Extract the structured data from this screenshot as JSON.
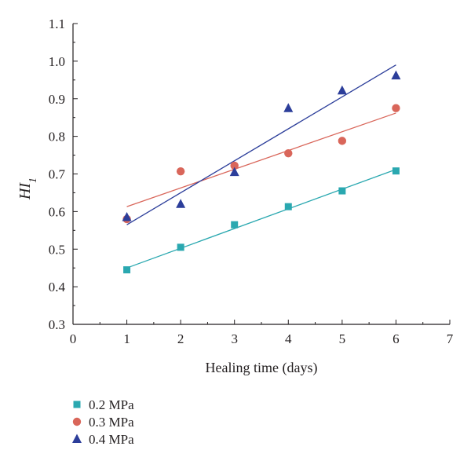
{
  "chart_data": {
    "type": "scatter",
    "xlabel": "Healing time (days)",
    "ylabel": {
      "main": "HI",
      "subscript": "1"
    },
    "xlim": [
      0,
      7
    ],
    "ylim": [
      0.3,
      1.1
    ],
    "xticks": [
      0,
      1,
      2,
      3,
      4,
      5,
      6,
      7
    ],
    "yticks": [
      0.3,
      0.4,
      0.5,
      0.6,
      0.7,
      0.8,
      0.9,
      1.0,
      1.1
    ],
    "ytick_labels": [
      "0.3",
      "0.4",
      "0.5",
      "0.6",
      "0.7",
      "0.8",
      "0.9",
      "1.0",
      "1.1"
    ],
    "grid": false,
    "legend_position": "bottom-left, below plot",
    "series": [
      {
        "name": "0.2 MPa",
        "marker": "square",
        "color": "#2aa8b0",
        "x": [
          1,
          2,
          3,
          4,
          5,
          6
        ],
        "y": [
          0.445,
          0.505,
          0.565,
          0.613,
          0.655,
          0.708
        ],
        "fit": {
          "x": [
            1,
            6
          ],
          "y": [
            0.45,
            0.712
          ]
        }
      },
      {
        "name": "0.3 MPa",
        "marker": "circle",
        "color": "#d9665a",
        "x": [
          1,
          2,
          3,
          4,
          5,
          6
        ],
        "y": [
          0.58,
          0.707,
          0.722,
          0.755,
          0.788,
          0.875
        ],
        "fit": {
          "x": [
            1,
            6
          ],
          "y": [
            0.613,
            0.862
          ]
        }
      },
      {
        "name": "0.4 MPa",
        "marker": "triangle",
        "color": "#2c3e9a",
        "x": [
          1,
          2,
          3,
          4,
          5,
          6
        ],
        "y": [
          0.585,
          0.62,
          0.705,
          0.875,
          0.922,
          0.962
        ],
        "fit": {
          "x": [
            1,
            6
          ],
          "y": [
            0.565,
            0.99
          ]
        }
      }
    ]
  }
}
